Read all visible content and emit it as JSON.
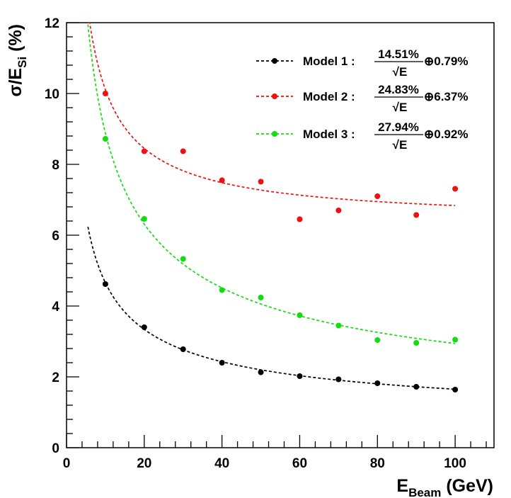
{
  "chart_data": {
    "type": "scatter",
    "xlabel": {
      "main": "E",
      "sub": "Beam",
      "unit": " (GeV)"
    },
    "ylabel": {
      "main": "σ/E",
      "sub": "Si",
      "unit": " (%)"
    },
    "xlim": [
      0,
      110
    ],
    "ylim": [
      0,
      12
    ],
    "x_ticks": [
      0,
      20,
      40,
      60,
      80,
      100
    ],
    "y_ticks": [
      0,
      2,
      4,
      6,
      8,
      10,
      12
    ],
    "grid": false,
    "legend_position": "top-right",
    "x": [
      10,
      20,
      30,
      40,
      50,
      60,
      70,
      80,
      90,
      100
    ],
    "series": [
      {
        "legend_prefix": "Model 1 :",
        "fit_stochastic": "14.51%",
        "fit_sqrt": "√E",
        "fit_constant": "⊕0.79%",
        "color": "#000000",
        "values": [
          4.62,
          3.4,
          2.78,
          2.4,
          2.13,
          2.02,
          1.93,
          1.82,
          1.72,
          1.64
        ],
        "fit": {
          "a": 14.51,
          "b": 0.79,
          "x_range": [
            5.5,
            100
          ]
        }
      },
      {
        "legend_prefix": "Model 2 :",
        "fit_stochastic": "24.83%",
        "fit_sqrt": "√E",
        "fit_constant": "⊕6.37%",
        "color": "#ee1111",
        "values": [
          10.0,
          8.37,
          8.37,
          7.55,
          7.51,
          6.45,
          6.7,
          7.1,
          6.57,
          7.31
        ],
        "fit": {
          "a": 24.83,
          "b": 6.37,
          "x_range": [
            5.5,
            100
          ]
        }
      },
      {
        "legend_prefix": "Model 3 :",
        "fit_stochastic": "27.94%",
        "fit_sqrt": "√E",
        "fit_constant": "⊕0.92%",
        "color": "#11dd11",
        "values": [
          8.72,
          6.46,
          5.33,
          4.45,
          4.24,
          3.74,
          3.45,
          3.04,
          2.96,
          3.05
        ],
        "fit": {
          "a": 27.94,
          "b": 0.92,
          "x_range": [
            5.5,
            100
          ]
        }
      }
    ]
  }
}
